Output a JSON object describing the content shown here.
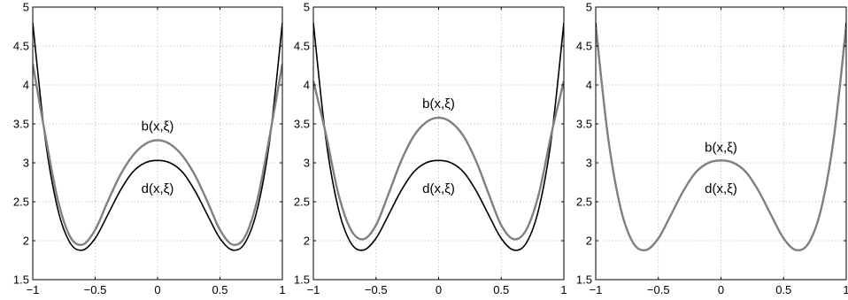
{
  "colors": {
    "d_curve": "#000000",
    "b_curve": "#808080",
    "grid": "#b0b0b0",
    "axes": "#000000"
  },
  "chart_data": [
    {
      "type": "line",
      "xlim": [
        -1,
        1
      ],
      "ylim": [
        1.5,
        5
      ],
      "xticks": [
        "-1",
        "-0.5",
        "0",
        "0.5",
        "1"
      ],
      "yticks": [
        "1.5",
        "2",
        "2.5",
        "3",
        "3.5",
        "4",
        "4.5",
        "5"
      ],
      "grid": true,
      "series": [
        {
          "role": "d",
          "color": "#000000",
          "x": [
            -1,
            -0.9,
            -0.8,
            -0.7,
            -0.6,
            -0.5,
            -0.4,
            -0.3,
            -0.2,
            -0.1,
            0,
            0.1,
            0.2,
            0.3,
            0.4,
            0.5,
            0.6,
            0.7,
            0.8,
            0.9,
            1
          ],
          "y": [
            4.8,
            3.31,
            2.41,
            1.97,
            1.88,
            2.03,
            2.33,
            2.64,
            2.88,
            3.0,
            3.03,
            3.0,
            2.88,
            2.64,
            2.33,
            2.03,
            1.88,
            1.97,
            2.41,
            3.31,
            4.8
          ]
        },
        {
          "role": "b",
          "color": "#808080",
          "x": [
            -1,
            -0.9,
            -0.8,
            -0.7,
            -0.6,
            -0.5,
            -0.4,
            -0.3,
            -0.2,
            -0.1,
            0,
            0.1,
            0.2,
            0.3,
            0.4,
            0.5,
            0.6,
            0.7,
            0.8,
            0.9,
            1
          ],
          "y": [
            4.27,
            3.36,
            2.53,
            2.05,
            1.95,
            2.14,
            2.5,
            2.84,
            3.09,
            3.24,
            3.29,
            3.24,
            3.09,
            2.84,
            2.5,
            2.14,
            1.95,
            2.05,
            2.53,
            3.36,
            4.27
          ]
        }
      ],
      "annotations": [
        {
          "text": "b(x,ξ)",
          "x": 0,
          "y": 3.47
        },
        {
          "text": "d(x,ξ)",
          "x": 0,
          "y": 2.67
        }
      ]
    },
    {
      "type": "line",
      "xlim": [
        -1,
        1
      ],
      "ylim": [
        1.5,
        5
      ],
      "xticks": [
        "-1",
        "-0.5",
        "0",
        "0.5",
        "1"
      ],
      "yticks": [
        "1.5",
        "2",
        "2.5",
        "3",
        "3.5",
        "4",
        "4.5",
        "5"
      ],
      "grid": true,
      "series": [
        {
          "role": "d",
          "color": "#000000",
          "x": [
            -1,
            -0.9,
            -0.8,
            -0.7,
            -0.6,
            -0.5,
            -0.4,
            -0.3,
            -0.2,
            -0.1,
            0,
            0.1,
            0.2,
            0.3,
            0.4,
            0.5,
            0.6,
            0.7,
            0.8,
            0.9,
            1
          ],
          "y": [
            4.8,
            3.31,
            2.41,
            1.97,
            1.88,
            2.03,
            2.33,
            2.64,
            2.88,
            3.0,
            3.03,
            3.0,
            2.88,
            2.64,
            2.33,
            2.03,
            1.88,
            1.97,
            2.41,
            3.31,
            4.8
          ]
        },
        {
          "role": "b",
          "color": "#808080",
          "x": [
            -1,
            -0.9,
            -0.8,
            -0.7,
            -0.6,
            -0.5,
            -0.4,
            -0.3,
            -0.2,
            -0.1,
            0,
            0.1,
            0.2,
            0.3,
            0.4,
            0.5,
            0.6,
            0.7,
            0.8,
            0.9,
            1
          ],
          "y": [
            4.05,
            3.37,
            2.6,
            2.14,
            2.02,
            2.2,
            2.6,
            3.02,
            3.34,
            3.52,
            3.58,
            3.52,
            3.34,
            3.02,
            2.6,
            2.2,
            2.02,
            2.14,
            2.6,
            3.37,
            4.05
          ]
        }
      ],
      "annotations": [
        {
          "text": "b(x,ξ)",
          "x": 0,
          "y": 3.76
        },
        {
          "text": "d(x,ξ)",
          "x": 0,
          "y": 2.67
        }
      ]
    },
    {
      "type": "line",
      "xlim": [
        -1,
        1
      ],
      "ylim": [
        1.5,
        5
      ],
      "xticks": [
        "-1",
        "-0.5",
        "0",
        "0.5",
        "1"
      ],
      "yticks": [
        "1.5",
        "2",
        "2.5",
        "3",
        "3.5",
        "4",
        "4.5",
        "5"
      ],
      "grid": true,
      "series": [
        {
          "role": "d",
          "color": "#000000",
          "x": [
            -1,
            -0.9,
            -0.8,
            -0.7,
            -0.6,
            -0.5,
            -0.4,
            -0.3,
            -0.2,
            -0.1,
            0,
            0.1,
            0.2,
            0.3,
            0.4,
            0.5,
            0.6,
            0.7,
            0.8,
            0.9,
            1
          ],
          "y": [
            4.8,
            3.31,
            2.41,
            1.97,
            1.88,
            2.03,
            2.33,
            2.64,
            2.88,
            3.0,
            3.03,
            3.0,
            2.88,
            2.64,
            2.33,
            2.03,
            1.88,
            1.97,
            2.41,
            3.31,
            4.8
          ]
        },
        {
          "role": "b",
          "color": "#808080",
          "x": [
            -1,
            -0.9,
            -0.8,
            -0.7,
            -0.6,
            -0.5,
            -0.4,
            -0.3,
            -0.2,
            -0.1,
            0,
            0.1,
            0.2,
            0.3,
            0.4,
            0.5,
            0.6,
            0.7,
            0.8,
            0.9,
            1
          ],
          "y": [
            4.75,
            3.31,
            2.41,
            1.97,
            1.88,
            2.03,
            2.33,
            2.64,
            2.88,
            3.0,
            3.03,
            3.0,
            2.88,
            2.64,
            2.33,
            2.03,
            1.88,
            1.97,
            2.41,
            3.31,
            4.75
          ]
        }
      ],
      "annotations": [
        {
          "text": "b(x,ξ)",
          "x": 0,
          "y": 3.2
        },
        {
          "text": "d(x,ξ)",
          "x": 0,
          "y": 2.67
        }
      ]
    }
  ]
}
